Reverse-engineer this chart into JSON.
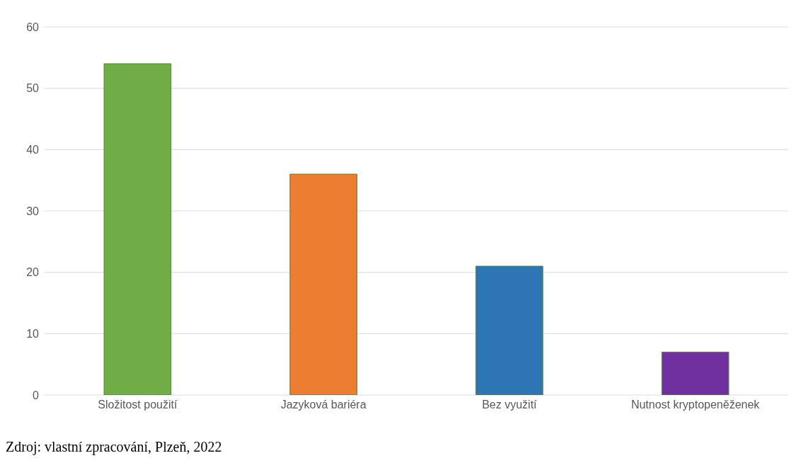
{
  "chart_data": {
    "type": "bar",
    "categories": [
      "Složitost použití",
      "Jazyková bariéra",
      "Bez využití",
      "Nutnost kryptopeněženek"
    ],
    "values": [
      54,
      36,
      21,
      7
    ],
    "colors": [
      "#70ad47",
      "#ed7d31",
      "#2e75b6",
      "#7030a0"
    ],
    "ylim": [
      0,
      60
    ],
    "yticks": [
      0,
      10,
      20,
      30,
      40,
      50,
      60
    ],
    "grid": "y",
    "annotations": [
      "Zdroj: vlastní zpracování, Plzeň, 2022"
    ]
  }
}
